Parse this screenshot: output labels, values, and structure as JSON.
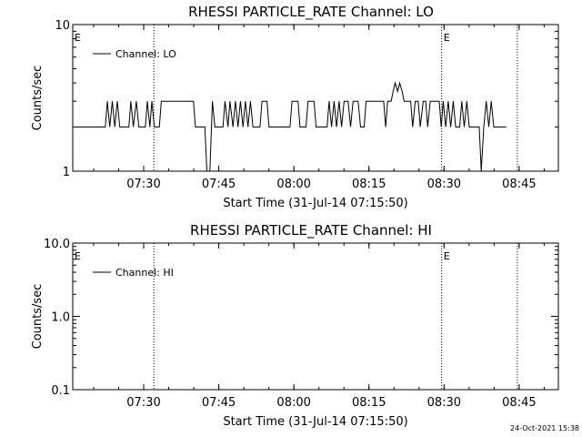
{
  "footer": {
    "timestamp": "24-Oct-2021 15:38"
  },
  "chart_data": [
    {
      "type": "line",
      "title": "RHESSI PARTICLE_RATE Channel: LO",
      "xlabel": "Start Time (31-Jul-14 07:15:50)",
      "ylabel": "Counts/sec",
      "x_tick_labels": [
        "07:30",
        "07:45",
        "08:00",
        "08:15",
        "08:30",
        "08:45"
      ],
      "y_tick_labels": [
        "1",
        "10"
      ],
      "y_scale": "log",
      "ylim": [
        1,
        10
      ],
      "xlim_minutes_since_start": [
        0,
        97
      ],
      "x_ticks_minutes": [
        14.17,
        29.17,
        44.17,
        59.17,
        74.17,
        89.17
      ],
      "event_markers": [
        {
          "label": "E",
          "x_minutes": 0
        },
        {
          "label": "E",
          "x_minutes": 73.7
        }
      ],
      "dotted_lines_minutes": [
        16.2,
        73.7,
        88.8
      ],
      "legend": {
        "entries": [
          "Channel: LO"
        ],
        "position": "top-left"
      },
      "series": [
        {
          "name": "Channel: LO",
          "points": [
            [
              0,
              2
            ],
            [
              6.5,
              2
            ],
            [
              6.9,
              3
            ],
            [
              7.4,
              2
            ],
            [
              7.9,
              3
            ],
            [
              8.4,
              2
            ],
            [
              8.9,
              3
            ],
            [
              9.4,
              2
            ],
            [
              11.2,
              2
            ],
            [
              11.6,
              3
            ],
            [
              12.1,
              2
            ],
            [
              12.7,
              3
            ],
            [
              13.2,
              2
            ],
            [
              14.5,
              2
            ],
            [
              14.9,
              3
            ],
            [
              15.4,
              2
            ],
            [
              15.8,
              3
            ],
            [
              16.3,
              2
            ],
            [
              17.3,
              2
            ],
            [
              17.7,
              3
            ],
            [
              24.1,
              3
            ],
            [
              24.5,
              2
            ],
            [
              26.4,
              2
            ],
            [
              26.8,
              1
            ],
            [
              27.4,
              1
            ],
            [
              27.9,
              3
            ],
            [
              28.4,
              2
            ],
            [
              30.0,
              2
            ],
            [
              30.4,
              3
            ],
            [
              31.0,
              2
            ],
            [
              31.4,
              3
            ],
            [
              32.0,
              2
            ],
            [
              32.5,
              3
            ],
            [
              33.0,
              2
            ],
            [
              33.5,
              3
            ],
            [
              34.0,
              2
            ],
            [
              34.5,
              3
            ],
            [
              35.0,
              2
            ],
            [
              35.5,
              3
            ],
            [
              36.0,
              2
            ],
            [
              37.4,
              2
            ],
            [
              37.8,
              3
            ],
            [
              38.8,
              3
            ],
            [
              39.2,
              2
            ],
            [
              43.4,
              2
            ],
            [
              43.8,
              3
            ],
            [
              45.0,
              3
            ],
            [
              45.4,
              2
            ],
            [
              46.6,
              2
            ],
            [
              47.0,
              3
            ],
            [
              48.2,
              3
            ],
            [
              48.6,
              2
            ],
            [
              50.8,
              2
            ],
            [
              51.2,
              3
            ],
            [
              51.7,
              2
            ],
            [
              52.2,
              3
            ],
            [
              52.7,
              2
            ],
            [
              53.2,
              3
            ],
            [
              53.7,
              2
            ],
            [
              54.2,
              3
            ],
            [
              55.0,
              3
            ],
            [
              55.5,
              2
            ],
            [
              56.0,
              3
            ],
            [
              57.0,
              3
            ],
            [
              57.5,
              2
            ],
            [
              58.2,
              2
            ],
            [
              58.6,
              3
            ],
            [
              62.1,
              3
            ],
            [
              62.5,
              2
            ],
            [
              62.9,
              3
            ],
            [
              63.6,
              3
            ],
            [
              64.0,
              3.5
            ],
            [
              64.4,
              4
            ],
            [
              64.9,
              3.5
            ],
            [
              65.3,
              4
            ],
            [
              65.8,
              3.5
            ],
            [
              66.2,
              3
            ],
            [
              67.5,
              3
            ],
            [
              67.9,
              2
            ],
            [
              68.4,
              3
            ],
            [
              69.0,
              3
            ],
            [
              69.4,
              2
            ],
            [
              70.0,
              3
            ],
            [
              70.5,
              3
            ],
            [
              70.9,
              2
            ],
            [
              71.4,
              3
            ],
            [
              73.2,
              3
            ],
            [
              73.6,
              2
            ],
            [
              74.0,
              3
            ],
            [
              74.5,
              2
            ],
            [
              75.0,
              3
            ],
            [
              75.5,
              2
            ],
            [
              76.0,
              3
            ],
            [
              76.5,
              2
            ],
            [
              77.3,
              2
            ],
            [
              77.7,
              3
            ],
            [
              78.2,
              2
            ],
            [
              78.7,
              3
            ],
            [
              79.2,
              2
            ],
            [
              81.2,
              2
            ],
            [
              81.6,
              1
            ],
            [
              82.1,
              2
            ],
            [
              82.6,
              3
            ],
            [
              83.1,
              2
            ],
            [
              83.6,
              3
            ],
            [
              84.1,
              2
            ],
            [
              86.6,
              2
            ]
          ]
        }
      ]
    },
    {
      "type": "line",
      "title": "RHESSI PARTICLE_RATE Channel: HI",
      "xlabel": "Start Time (31-Jul-14 07:15:50)",
      "ylabel": "Counts/sec",
      "x_tick_labels": [
        "07:30",
        "07:45",
        "08:00",
        "08:15",
        "08:30",
        "08:45"
      ],
      "y_tick_labels": [
        "0.1",
        "1.0",
        "10.0"
      ],
      "y_scale": "log",
      "ylim": [
        0.1,
        10
      ],
      "xlim_minutes_since_start": [
        0,
        97
      ],
      "x_ticks_minutes": [
        14.17,
        29.17,
        44.17,
        59.17,
        74.17,
        89.17
      ],
      "event_markers": [
        {
          "label": "E",
          "x_minutes": 0
        },
        {
          "label": "E",
          "x_minutes": 73.7
        }
      ],
      "dotted_lines_minutes": [
        16.2,
        73.7,
        88.8
      ],
      "legend": {
        "entries": [
          "Channel: HI"
        ],
        "position": "top-left"
      },
      "series": [
        {
          "name": "Channel: HI",
          "points": []
        }
      ]
    }
  ]
}
